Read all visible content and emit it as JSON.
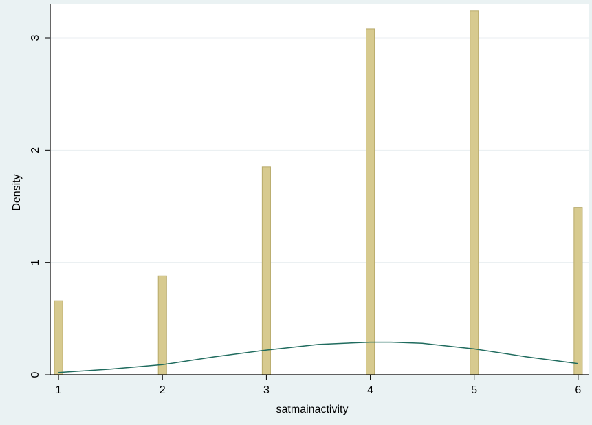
{
  "colors": {
    "background": "#eaf2f3",
    "plot_area": "#ffffff",
    "bar_fill": "#d7ca8f",
    "bar_stroke": "#b8aa6a",
    "curve": "#1f6b5e",
    "grid": "#e8eef0",
    "axis": "#000000"
  },
  "chart_data": {
    "type": "bar",
    "title": "",
    "xlabel": "satmainactivity",
    "ylabel": "Density",
    "xlim": [
      0.92,
      6.1
    ],
    "ylim": [
      0,
      3.3
    ],
    "x_ticks": [
      1,
      2,
      3,
      4,
      5,
      6
    ],
    "y_ticks": [
      0,
      1,
      2,
      3
    ],
    "grid": "horizontal",
    "bar_width": 0.08,
    "bars": [
      {
        "x": 1,
        "value": 0.66
      },
      {
        "x": 2,
        "value": 0.88
      },
      {
        "x": 3,
        "value": 1.85
      },
      {
        "x": 4,
        "value": 3.08
      },
      {
        "x": 5,
        "value": 3.24
      },
      {
        "x": 6,
        "value": 1.49
      }
    ],
    "series": [
      {
        "type": "line",
        "x": [
          1,
          1.5,
          2,
          2.5,
          3,
          3.5,
          4,
          4.2,
          4.5,
          5,
          5.5,
          6
        ],
        "values": [
          0.02,
          0.05,
          0.09,
          0.16,
          0.22,
          0.27,
          0.29,
          0.29,
          0.28,
          0.23,
          0.16,
          0.1
        ]
      }
    ]
  }
}
